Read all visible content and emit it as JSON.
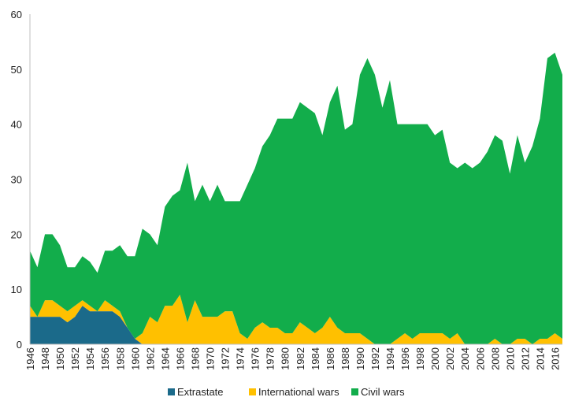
{
  "chart_data": {
    "type": "area",
    "stacked": true,
    "title": "",
    "xlabel": "",
    "ylabel": "",
    "ylim": [
      0,
      60
    ],
    "yticks": [
      0,
      10,
      20,
      30,
      40,
      50,
      60
    ],
    "grid": false,
    "legend_position": "bottom",
    "x": [
      1946,
      1947,
      1948,
      1949,
      1950,
      1951,
      1952,
      1953,
      1954,
      1955,
      1956,
      1957,
      1958,
      1959,
      1960,
      1961,
      1962,
      1963,
      1964,
      1965,
      1966,
      1967,
      1968,
      1969,
      1970,
      1971,
      1972,
      1973,
      1974,
      1975,
      1976,
      1977,
      1978,
      1979,
      1980,
      1981,
      1982,
      1983,
      1984,
      1985,
      1986,
      1987,
      1988,
      1989,
      1990,
      1991,
      1992,
      1993,
      1994,
      1995,
      1996,
      1997,
      1998,
      1999,
      2000,
      2001,
      2002,
      2003,
      2004,
      2005,
      2006,
      2007,
      2008,
      2009,
      2010,
      2011,
      2012,
      2013,
      2014,
      2015,
      2016,
      2017
    ],
    "x_tick_labels": [
      "1946",
      "1948",
      "1950",
      "1952",
      "1954",
      "1956",
      "1958",
      "1960",
      "1962",
      "1964",
      "1966",
      "1968",
      "1970",
      "1972",
      "1974",
      "1976",
      "1978",
      "1980",
      "1982",
      "1984",
      "1986",
      "1988",
      "1990",
      "1992",
      "1994",
      "1996",
      "1998",
      "2000",
      "2002",
      "2004",
      "2006",
      "2008",
      "2010",
      "2012",
      "2014",
      "2016"
    ],
    "series": [
      {
        "name": "Extrastate",
        "color": "#1b6a8a",
        "values": [
          5,
          5,
          5,
          5,
          5,
          4,
          5,
          7,
          6,
          6,
          6,
          6,
          5,
          3,
          1,
          0,
          0,
          0,
          0,
          0,
          0,
          0,
          0,
          0,
          0,
          0,
          0,
          0,
          0,
          0,
          0,
          0,
          0,
          0,
          0,
          0,
          0,
          0,
          0,
          0,
          0,
          0,
          0,
          0,
          0,
          0,
          0,
          0,
          0,
          0,
          0,
          0,
          0,
          0,
          0,
          0,
          0,
          0,
          0,
          0,
          0,
          0,
          0,
          0,
          0,
          0,
          0,
          0,
          0,
          0,
          0,
          0
        ]
      },
      {
        "name": "International wars",
        "color": "#ffc000",
        "values": [
          2,
          0,
          3,
          3,
          2,
          2,
          2,
          1,
          1,
          0,
          2,
          1,
          1,
          0,
          0,
          2,
          5,
          4,
          7,
          7,
          9,
          4,
          8,
          5,
          5,
          5,
          6,
          6,
          2,
          1,
          3,
          4,
          3,
          3,
          2,
          2,
          4,
          3,
          2,
          3,
          5,
          3,
          2,
          2,
          2,
          1,
          0,
          0,
          0,
          1,
          2,
          1,
          2,
          2,
          2,
          2,
          1,
          2,
          0,
          0,
          0,
          0,
          1,
          0,
          0,
          1,
          1,
          0,
          1,
          1,
          2,
          1
        ]
      },
      {
        "name": "Civil wars",
        "color": "#12ad4b",
        "values": [
          10,
          9,
          12,
          12,
          11,
          8,
          7,
          8,
          8,
          7,
          9,
          10,
          12,
          13,
          15,
          19,
          15,
          14,
          18,
          20,
          19,
          29,
          18,
          24,
          21,
          24,
          20,
          20,
          24,
          28,
          29,
          32,
          35,
          38,
          39,
          39,
          40,
          40,
          40,
          35,
          39,
          44,
          37,
          38,
          47,
          51,
          49,
          43,
          48,
          39,
          38,
          39,
          38,
          38,
          36,
          37,
          32,
          30,
          33,
          32,
          33,
          35,
          37,
          37,
          31,
          37,
          32,
          36,
          40,
          51,
          51,
          48
        ]
      }
    ]
  }
}
